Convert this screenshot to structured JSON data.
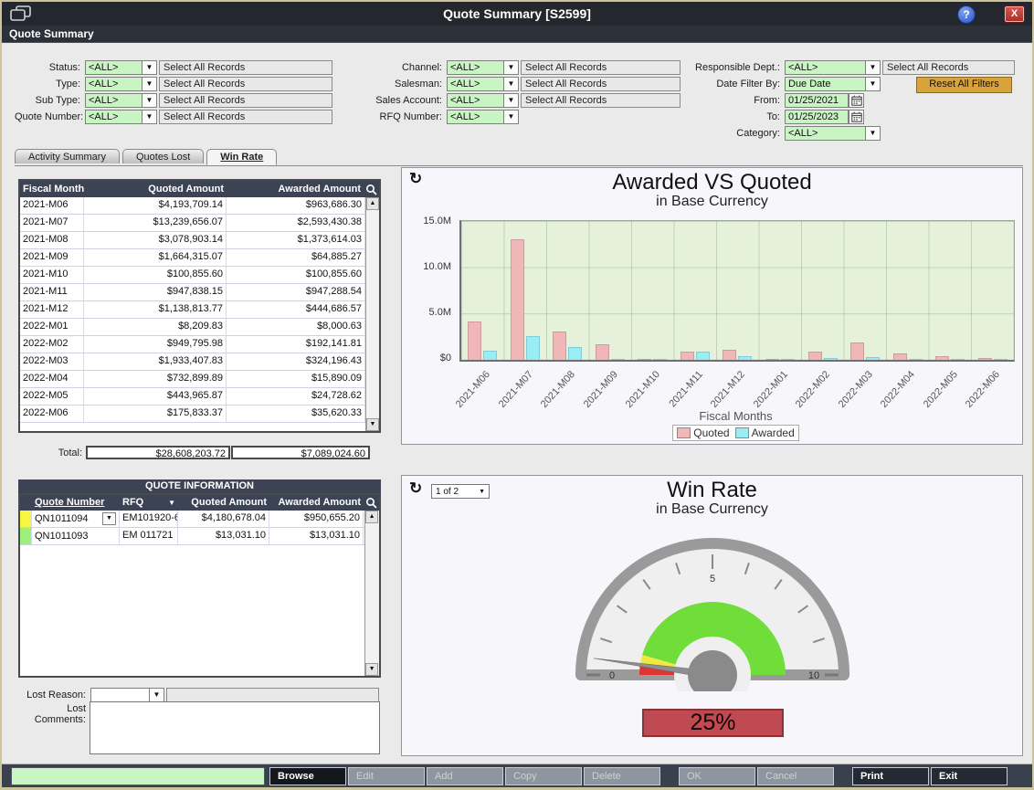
{
  "window": {
    "title": "Quote Summary [S2599]",
    "subtitle": "Quote Summary"
  },
  "icons": {
    "dropdown": "▼",
    "scroll_up": "▲",
    "scroll_down": "▼",
    "refresh": "↻",
    "help": "?",
    "close": "X",
    "sort_asc": "▲"
  },
  "filters": {
    "col1": [
      {
        "label": "Status:",
        "value": "<ALL>",
        "field": "Select All Records"
      },
      {
        "label": "Type:",
        "value": "<ALL>",
        "field": "Select All Records"
      },
      {
        "label": "Sub Type:",
        "value": "<ALL>",
        "field": "Select All Records"
      },
      {
        "label": "Quote Number:",
        "value": "<ALL>",
        "field": "Select All Records"
      }
    ],
    "col2": [
      {
        "label": "Channel:",
        "value": "<ALL>",
        "field": "Select All Records"
      },
      {
        "label": "Salesman:",
        "value": "<ALL>",
        "field": "Select All Records"
      },
      {
        "label": "Sales Account:",
        "value": "<ALL>",
        "field": "Select All Records"
      },
      {
        "label": "RFQ Number:",
        "value": "<ALL>"
      }
    ],
    "col3": [
      {
        "label": "Responsible Dept.:",
        "value": "<ALL>",
        "type": "select",
        "field": "Select All Records"
      },
      {
        "label": "Date Filter By:",
        "value": "Due Date",
        "type": "select"
      },
      {
        "label": "From:",
        "value": "01/25/2021",
        "type": "date"
      },
      {
        "label": "To:",
        "value": "01/25/2023",
        "type": "date"
      },
      {
        "label": "Category:",
        "value": "<ALL>",
        "type": "select"
      }
    ],
    "reset_label": "Reset All Filters",
    "reset_color": "#d9a33c",
    "input_bg_color": "#c9f4c3"
  },
  "tabs": [
    {
      "label": "Activity Summary",
      "active": false
    },
    {
      "label": "Quotes Lost",
      "active": false
    },
    {
      "label": "Win Rate",
      "active": true
    }
  ],
  "fiscal_table": {
    "columns": [
      "Fiscal Month",
      "Quoted Amount",
      "Awarded Amount"
    ],
    "rows": [
      {
        "month": "2021-M06",
        "quoted": "$4,193,709.14",
        "awarded": "$963,686.30"
      },
      {
        "month": "2021-M07",
        "quoted": "$13,239,656.07",
        "awarded": "$2,593,430.38"
      },
      {
        "month": "2021-M08",
        "quoted": "$3,078,903.14",
        "awarded": "$1,373,614.03"
      },
      {
        "month": "2021-M09",
        "quoted": "$1,664,315.07",
        "awarded": "$64,885.27"
      },
      {
        "month": "2021-M10",
        "quoted": "$100,855.60",
        "awarded": "$100,855.60"
      },
      {
        "month": "2021-M11",
        "quoted": "$947,838.15",
        "awarded": "$947,288.54"
      },
      {
        "month": "2021-M12",
        "quoted": "$1,138,813.77",
        "awarded": "$444,686.57"
      },
      {
        "month": "2022-M01",
        "quoted": "$8,209.83",
        "awarded": "$8,000.63"
      },
      {
        "month": "2022-M02",
        "quoted": "$949,795.98",
        "awarded": "$192,141.81"
      },
      {
        "month": "2022-M03",
        "quoted": "$1,933,407.83",
        "awarded": "$324,196.43"
      },
      {
        "month": "2022-M04",
        "quoted": "$732,899.89",
        "awarded": "$15,890.09"
      },
      {
        "month": "2022-M05",
        "quoted": "$443,965.87",
        "awarded": "$24,728.62"
      },
      {
        "month": "2022-M06",
        "quoted": "$175,833.37",
        "awarded": "$35,620.33"
      }
    ],
    "total_label": "Total:",
    "total_quoted": "$28,608,203.72",
    "total_awarded": "$7,089,024.60"
  },
  "quote_info": {
    "title": "QUOTE INFORMATION",
    "columns": [
      "Quote Number",
      "RFQ",
      "Quoted Amount",
      "Awarded Amount"
    ],
    "rows": [
      {
        "color": "#f6f63e",
        "quote_number": "QN1011094",
        "rfq": "EM101920-6",
        "quoted": "$4,180,678.04",
        "awarded": "$950,655.20",
        "has_dropdown": true
      },
      {
        "color": "#9ef07e",
        "quote_number": "QN1011093",
        "rfq": "EM 011721",
        "quoted": "$13,031.10",
        "awarded": "$13,031.10",
        "has_dropdown": false
      }
    ]
  },
  "lost": {
    "reason_label": "Lost Reason:",
    "comments_label": "Lost Comments:",
    "reason_value": "",
    "comments_value": ""
  },
  "chart_data": {
    "type": "bar",
    "title": "Awarded VS Quoted",
    "subtitle": "in Base Currency",
    "xlabel": "Fiscal Months",
    "ylabel": "",
    "categories": [
      "2021-M06",
      "2021-M07",
      "2021-M08",
      "2021-M09",
      "2021-M10",
      "2021-M11",
      "2021-M12",
      "2022-M01",
      "2022-M02",
      "2022-M03",
      "2022-M04",
      "2022-M05",
      "2022-M06"
    ],
    "series": [
      {
        "name": "Quoted",
        "color": "#f0b6b8",
        "values": [
          4193709.14,
          13239656.07,
          3078903.14,
          1664315.07,
          100855.6,
          947838.15,
          1138813.77,
          8209.83,
          949795.98,
          1933407.83,
          732899.89,
          443965.87,
          175833.37
        ]
      },
      {
        "name": "Awarded",
        "color": "#99eef6",
        "values": [
          963686.3,
          2593430.38,
          1373614.03,
          64885.27,
          100855.6,
          947288.54,
          444686.57,
          8000.63,
          192141.81,
          324196.43,
          15890.09,
          24728.62,
          35620.33
        ]
      }
    ],
    "ylim": [
      0,
      15000000
    ],
    "yticks": [
      "$0",
      "5.0M",
      "10.0M",
      "15.0M"
    ],
    "grid": true,
    "legend_position": "bottom",
    "plot_bg_color": "#e5f1db"
  },
  "gauge": {
    "title": "Win Rate",
    "subtitle": "in Base Currency",
    "pager_value": "1 of 2",
    "value_label": "25%",
    "min_label": "0",
    "mid_label": "5",
    "max_label": "10",
    "zone_colors": {
      "red": "#dd3434",
      "yellow": "#f0e93e",
      "green": "#70dd3a"
    },
    "value_box_color": "#bf4a52"
  },
  "toolbar": {
    "buttons": [
      {
        "label": "Browse",
        "state": "active"
      },
      {
        "label": "Edit",
        "state": "disabled"
      },
      {
        "label": "Add",
        "state": "disabled"
      },
      {
        "label": "Copy",
        "state": "disabled"
      },
      {
        "label": "Delete",
        "state": "disabled",
        "gap_after": true
      },
      {
        "label": "OK",
        "state": "disabled"
      },
      {
        "label": "Cancel",
        "state": "disabled",
        "gap_after": true
      },
      {
        "label": "Print",
        "state": "enabled"
      },
      {
        "label": "Exit",
        "state": "enabled"
      }
    ]
  }
}
